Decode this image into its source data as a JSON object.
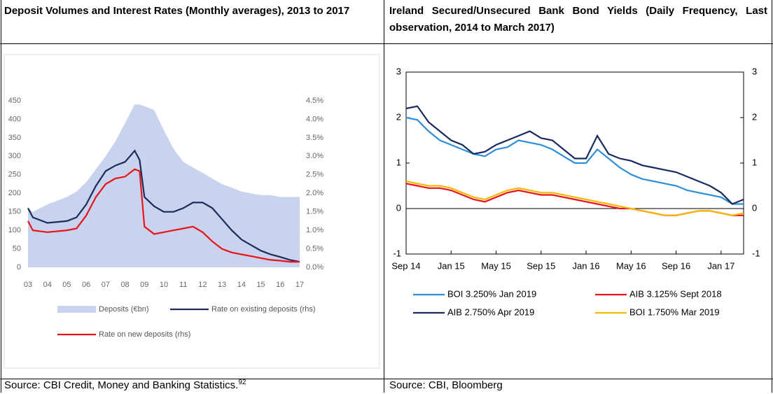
{
  "table": {
    "headers": [
      "Deposit Volumes and Interest Rates (Monthly averages), 2013 to 2017",
      "Ireland Secured/Unsecured Bank Bond Yields (Daily Frequency, Last observation, 2014 to March 2017)"
    ],
    "sources": [
      "Source: CBI Credit, Money and Banking Statistics.",
      "Source: CBI, Bloomberg"
    ],
    "source_note": "92"
  },
  "chart_data": [
    {
      "type": "line",
      "x": [
        2003,
        2003.25,
        2004,
        2005,
        2005.5,
        2006,
        2006.5,
        2007,
        2007.5,
        2008,
        2008.5,
        2008.75,
        2009,
        2009.5,
        2010,
        2010.5,
        2011,
        2011.5,
        2012,
        2012.5,
        2013,
        2013.5,
        2014,
        2014.5,
        2015,
        2015.5,
        2016,
        2016.5,
        2017
      ],
      "xlim": [
        2003,
        2017
      ],
      "xticks": [
        {
          "value": 2003,
          "label": "03"
        },
        {
          "value": 2004,
          "label": "04"
        },
        {
          "value": 2005,
          "label": "05"
        },
        {
          "value": 2006,
          "label": "06"
        },
        {
          "value": 2007,
          "label": "07"
        },
        {
          "value": 2008,
          "label": "08"
        },
        {
          "value": 2009,
          "label": "09"
        },
        {
          "value": 2010,
          "label": "10"
        },
        {
          "value": 2011,
          "label": "11"
        },
        {
          "value": 2012,
          "label": "12"
        },
        {
          "value": 2013,
          "label": "13"
        },
        {
          "value": 2014,
          "label": "14"
        },
        {
          "value": 2015,
          "label": "15"
        },
        {
          "value": 2016,
          "label": "16"
        },
        {
          "value": 2017,
          "label": "17"
        }
      ],
      "ylim": [
        0,
        450
      ],
      "yticks": [
        0,
        50,
        100,
        150,
        200,
        250,
        300,
        350,
        400,
        450
      ],
      "y2lim": [
        0,
        4.5
      ],
      "y2ticks": [
        {
          "value": 0,
          "label": "0.0%"
        },
        {
          "value": 0.5,
          "label": "0.5%"
        },
        {
          "value": 1,
          "label": "1.0%"
        },
        {
          "value": 1.5,
          "label": "1.5%"
        },
        {
          "value": 2,
          "label": "2.0%"
        },
        {
          "value": 2.5,
          "label": "2.5%"
        },
        {
          "value": 3,
          "label": "3.0%"
        },
        {
          "value": 3.5,
          "label": "3.5%"
        },
        {
          "value": 4,
          "label": "4.0%"
        },
        {
          "value": 4.5,
          "label": "4.5%"
        }
      ],
      "series": [
        {
          "name": "Deposits (€bn)",
          "color": "#c9d3ee",
          "fill": true,
          "values": [
            160,
            150,
            170,
            190,
            205,
            230,
            265,
            300,
            340,
            390,
            440,
            440,
            435,
            425,
            370,
            320,
            285,
            270,
            255,
            240,
            225,
            215,
            205,
            200,
            195,
            195,
            190,
            190,
            190
          ]
        },
        {
          "name": "Rate on existing deposits (rhs)",
          "color": "#1c2b5c",
          "axis": "y2",
          "values": [
            1.6,
            1.35,
            1.2,
            1.25,
            1.35,
            1.7,
            2.2,
            2.6,
            2.75,
            2.85,
            3.15,
            2.9,
            1.9,
            1.65,
            1.5,
            1.5,
            1.6,
            1.75,
            1.75,
            1.6,
            1.3,
            1.0,
            0.75,
            0.6,
            0.45,
            0.35,
            0.28,
            0.2,
            0.15
          ]
        },
        {
          "name": "Rate on new deposits (rhs)",
          "color": "#e8131b",
          "axis": "y2",
          "values": [
            1.25,
            1.0,
            0.95,
            1.0,
            1.05,
            1.4,
            1.9,
            2.25,
            2.4,
            2.45,
            2.65,
            2.6,
            1.1,
            0.9,
            0.95,
            1.0,
            1.05,
            1.1,
            0.95,
            0.7,
            0.5,
            0.4,
            0.35,
            0.3,
            0.25,
            0.2,
            0.18,
            0.15,
            0.15
          ]
        }
      ]
    },
    {
      "type": "line",
      "categories": [
        "Sep 14",
        null,
        null,
        null,
        "Jan 15",
        null,
        null,
        null,
        "May 15",
        null,
        null,
        null,
        "Sep 15",
        null,
        null,
        null,
        "Jan 16",
        null,
        null,
        null,
        "May 16",
        null,
        null,
        null,
        "Sep 16",
        null,
        null,
        null,
        "Jan 17",
        null,
        null
      ],
      "ylim": [
        -1,
        3
      ],
      "yticks": [
        -1,
        0,
        1,
        2,
        3
      ],
      "y2lim": [
        -1,
        3
      ],
      "y2ticks": [
        -1,
        0,
        1,
        2,
        3
      ],
      "series": [
        {
          "name": "BOI 3.250% Jan 2019",
          "color": "#2e8fd6",
          "values": [
            2.0,
            1.95,
            1.7,
            1.5,
            1.4,
            1.3,
            1.2,
            1.15,
            1.3,
            1.35,
            1.5,
            1.45,
            1.4,
            1.3,
            1.15,
            1.0,
            1.0,
            1.3,
            1.1,
            0.9,
            0.75,
            0.65,
            0.6,
            0.55,
            0.5,
            0.4,
            0.35,
            0.3,
            0.25,
            0.1,
            0.1
          ]
        },
        {
          "name": "AIB 3.125% Sept 2018",
          "color": "#e8131b",
          "values": [
            0.55,
            0.5,
            0.45,
            0.45,
            0.4,
            0.3,
            0.2,
            0.15,
            0.25,
            0.35,
            0.4,
            0.35,
            0.3,
            0.3,
            0.25,
            0.2,
            0.15,
            0.1,
            0.05,
            0.0,
            0.0,
            -0.05,
            -0.1,
            -0.15,
            -0.15,
            -0.1,
            -0.05,
            -0.05,
            -0.1,
            -0.15,
            -0.15
          ]
        },
        {
          "name": "AIB 2.750% Apr 2019",
          "color": "#1a2a5e",
          "values": [
            2.2,
            2.25,
            1.9,
            1.7,
            1.5,
            1.4,
            1.2,
            1.25,
            1.4,
            1.5,
            1.6,
            1.7,
            1.55,
            1.5,
            1.3,
            1.1,
            1.1,
            1.6,
            1.2,
            1.1,
            1.05,
            0.95,
            0.9,
            0.85,
            0.8,
            0.7,
            0.6,
            0.5,
            0.35,
            0.1,
            0.2
          ]
        },
        {
          "name": "BOI 1.750% Mar 2019",
          "color": "#f5b800",
          "values": [
            0.6,
            0.55,
            0.5,
            0.5,
            0.45,
            0.35,
            0.25,
            0.2,
            0.3,
            0.4,
            0.45,
            0.4,
            0.35,
            0.35,
            0.3,
            0.25,
            0.2,
            0.15,
            0.1,
            0.05,
            0.0,
            -0.05,
            -0.1,
            -0.15,
            -0.15,
            -0.1,
            -0.05,
            -0.05,
            -0.1,
            -0.15,
            -0.1
          ]
        }
      ]
    }
  ]
}
